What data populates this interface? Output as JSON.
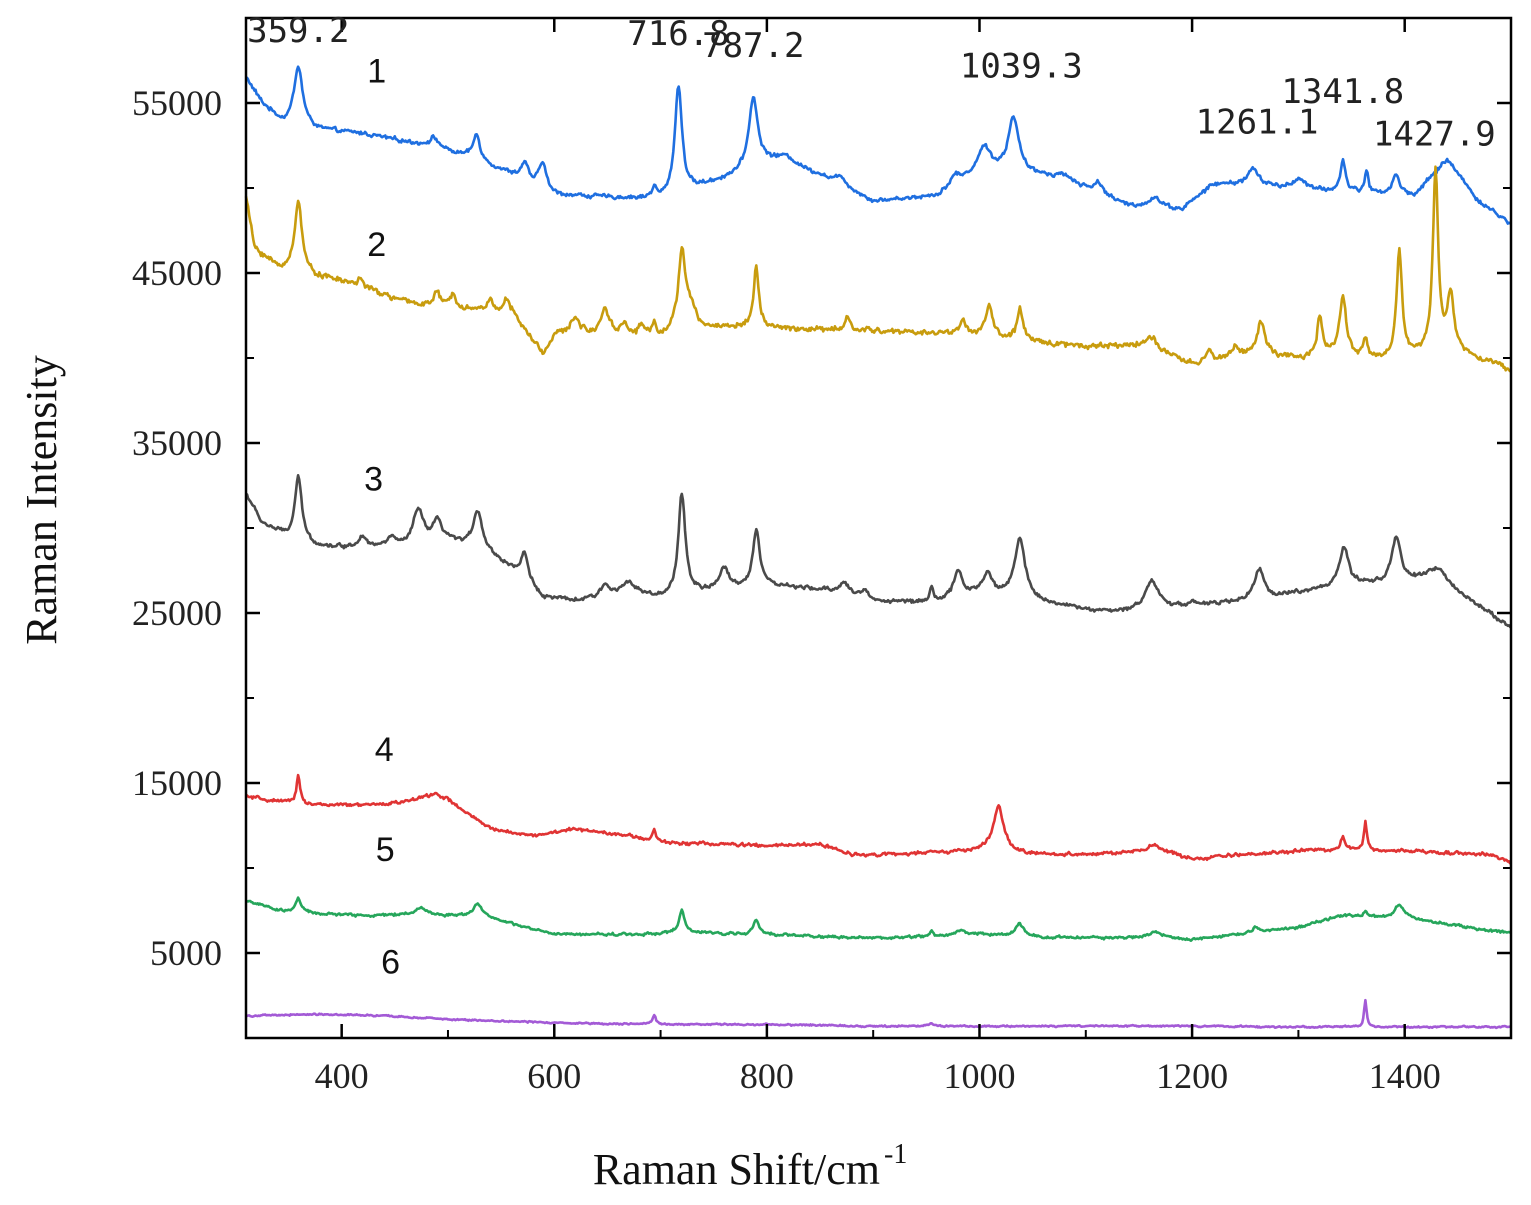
{
  "chart_data": {
    "type": "line",
    "xlabel": "Raman Shift/cm",
    "xlabel_superscript": "-1",
    "ylabel": "Raman Intensity",
    "xlim": [
      310,
      1500
    ],
    "ylim": [
      0,
      60000
    ],
    "x_ticks": [
      400,
      600,
      800,
      1000,
      1200,
      1400
    ],
    "y_ticks": [
      5000,
      15000,
      25000,
      35000,
      45000,
      55000
    ],
    "y_tick_labels": [
      "5000",
      "15000",
      "25000",
      "35000",
      "45000",
      "55000"
    ],
    "peak_labels": [
      {
        "text": "359.2",
        "x": 359.2,
        "y": 58600
      },
      {
        "text": "716.8",
        "x": 716.8,
        "y": 58400
      },
      {
        "text": "787.2",
        "x": 787.2,
        "y": 57700
      },
      {
        "text": "1039.3",
        "x": 1039.3,
        "y": 56500
      },
      {
        "text": "1261.1",
        "x": 1261.1,
        "y": 53200
      },
      {
        "text": "1341.8",
        "x": 1341.8,
        "y": 55000
      },
      {
        "text": "1427.9",
        "x": 1427.9,
        "y": 52500
      }
    ],
    "series": [
      {
        "name": "1",
        "color": "#1f6fe0",
        "label_pos": [
          433,
          56200
        ],
        "baseline": [
          [
            310,
            56500
          ],
          [
            325,
            55000
          ],
          [
            345,
            53800
          ],
          [
            380,
            53400
          ],
          [
            420,
            53200
          ],
          [
            470,
            52600
          ],
          [
            520,
            51800
          ],
          [
            560,
            50800
          ],
          [
            600,
            49600
          ],
          [
            700,
            49300
          ],
          [
            760,
            50500
          ],
          [
            800,
            51300
          ],
          [
            850,
            50700
          ],
          [
            900,
            49200
          ],
          [
            960,
            49500
          ],
          [
            1000,
            50800
          ],
          [
            1060,
            50600
          ],
          [
            1100,
            49800
          ],
          [
            1140,
            48900
          ],
          [
            1190,
            48700
          ],
          [
            1220,
            50200
          ],
          [
            1260,
            50200
          ],
          [
            1300,
            49900
          ],
          [
            1330,
            49800
          ],
          [
            1370,
            49700
          ],
          [
            1410,
            49600
          ],
          [
            1440,
            51700
          ],
          [
            1470,
            49200
          ],
          [
            1500,
            47900
          ]
        ],
        "peaks": [
          [
            359.2,
            3500,
            5
          ],
          [
            487,
            600,
            6
          ],
          [
            527,
            1500,
            4
          ],
          [
            572,
            1000,
            4
          ],
          [
            589,
            1600,
            4
          ],
          [
            694,
            600,
            3
          ],
          [
            716.8,
            6400,
            4
          ],
          [
            787.2,
            4200,
            5
          ],
          [
            818,
            700,
            14
          ],
          [
            870,
            500,
            6
          ],
          [
            977,
            600,
            6
          ],
          [
            1005,
            1500,
            8
          ],
          [
            1032,
            3400,
            6
          ],
          [
            1080,
            500,
            12
          ],
          [
            1112,
            700,
            6
          ],
          [
            1165,
            600,
            8
          ],
          [
            1257,
            900,
            6
          ],
          [
            1301,
            700,
            6
          ],
          [
            1342,
            1800,
            3
          ],
          [
            1364,
            1300,
            2
          ],
          [
            1392,
            1100,
            4
          ]
        ],
        "noise": 160
      },
      {
        "name": "2",
        "color": "#c89c0e",
        "label_pos": [
          433,
          46000
        ],
        "baseline": [
          [
            310,
            49500
          ],
          [
            318,
            46500
          ],
          [
            340,
            45300
          ],
          [
            400,
            44500
          ],
          [
            460,
            43300
          ],
          [
            560,
            42600
          ],
          [
            590,
            40200
          ],
          [
            600,
            41400
          ],
          [
            650,
            41300
          ],
          [
            700,
            41300
          ],
          [
            760,
            41800
          ],
          [
            820,
            41700
          ],
          [
            900,
            41600
          ],
          [
            980,
            41400
          ],
          [
            1040,
            41000
          ],
          [
            1100,
            40700
          ],
          [
            1150,
            40700
          ],
          [
            1200,
            39600
          ],
          [
            1260,
            40300
          ],
          [
            1300,
            39900
          ],
          [
            1330,
            40100
          ],
          [
            1380,
            39900
          ],
          [
            1420,
            40200
          ],
          [
            1460,
            40200
          ],
          [
            1500,
            39300
          ]
        ],
        "peaks": [
          [
            359.2,
            4300,
            4
          ],
          [
            418,
            500,
            4
          ],
          [
            490,
            800,
            3
          ],
          [
            505,
            800,
            3
          ],
          [
            540,
            600,
            4
          ],
          [
            555,
            700,
            4
          ],
          [
            620,
            1000,
            5
          ],
          [
            648,
            1600,
            5
          ],
          [
            666,
            700,
            3
          ],
          [
            682,
            600,
            3
          ],
          [
            694,
            700,
            2
          ],
          [
            720,
            4600,
            4
          ],
          [
            728,
            1200,
            6
          ],
          [
            790,
            3600,
            3
          ],
          [
            876,
            700,
            3
          ],
          [
            984,
            800,
            4
          ],
          [
            1009,
            1900,
            4
          ],
          [
            1038,
            1900,
            3
          ],
          [
            1162,
            700,
            8
          ],
          [
            1216,
            500,
            4
          ],
          [
            1240,
            600,
            4
          ],
          [
            1265,
            1900,
            4
          ],
          [
            1320,
            2300,
            3
          ],
          [
            1341.8,
            3500,
            4
          ],
          [
            1363,
            1200,
            2
          ],
          [
            1395,
            6300,
            3
          ],
          [
            1429,
            10800,
            3
          ],
          [
            1443,
            3300,
            4
          ]
        ],
        "noise": 220
      },
      {
        "name": "3",
        "color": "#4a4a4a",
        "label_pos": [
          430,
          32200
        ],
        "baseline": [
          [
            310,
            32000
          ],
          [
            325,
            30300
          ],
          [
            350,
            29400
          ],
          [
            380,
            28900
          ],
          [
            420,
            28800
          ],
          [
            460,
            28800
          ],
          [
            500,
            29200
          ],
          [
            530,
            28800
          ],
          [
            560,
            27600
          ],
          [
            590,
            25900
          ],
          [
            620,
            25700
          ],
          [
            680,
            26100
          ],
          [
            700,
            25800
          ],
          [
            740,
            26200
          ],
          [
            800,
            26600
          ],
          [
            860,
            26300
          ],
          [
            900,
            25700
          ],
          [
            960,
            25600
          ],
          [
            1000,
            26200
          ],
          [
            1060,
            25600
          ],
          [
            1100,
            25200
          ],
          [
            1130,
            25000
          ],
          [
            1200,
            25400
          ],
          [
            1250,
            25700
          ],
          [
            1300,
            26200
          ],
          [
            1340,
            26600
          ],
          [
            1380,
            26700
          ],
          [
            1420,
            26900
          ],
          [
            1460,
            25800
          ],
          [
            1500,
            24100
          ]
        ],
        "peaks": [
          [
            359.2,
            3700,
            4
          ],
          [
            420,
            700,
            5
          ],
          [
            447,
            600,
            5
          ],
          [
            472,
            2100,
            6
          ],
          [
            490,
            1200,
            5
          ],
          [
            528,
            2200,
            5
          ],
          [
            572,
            1600,
            4
          ],
          [
            648,
            700,
            5
          ],
          [
            668,
            800,
            7
          ],
          [
            720,
            6000,
            4
          ],
          [
            760,
            1300,
            5
          ],
          [
            790,
            3300,
            4
          ],
          [
            873,
            700,
            5
          ],
          [
            892,
            500,
            4
          ],
          [
            955,
            1000,
            2
          ],
          [
            980,
            1500,
            5
          ],
          [
            1008,
            1100,
            5
          ],
          [
            1038,
            3500,
            6
          ],
          [
            1162,
            1700,
            8
          ],
          [
            1200,
            300,
            3
          ],
          [
            1263,
            1800,
            5
          ],
          [
            1343,
            2200,
            5
          ],
          [
            1392,
            2700,
            5
          ],
          [
            1432,
            1000,
            10
          ]
        ],
        "noise": 150
      },
      {
        "name": "4",
        "color": "#e03434",
        "label_pos": [
          440,
          16300
        ],
        "baseline": [
          [
            310,
            14200
          ],
          [
            340,
            13900
          ],
          [
            380,
            13700
          ],
          [
            430,
            13700
          ],
          [
            480,
            14000
          ],
          [
            500,
            13900
          ],
          [
            540,
            12300
          ],
          [
            580,
            11900
          ],
          [
            620,
            12300
          ],
          [
            660,
            12000
          ],
          [
            700,
            11500
          ],
          [
            760,
            11400
          ],
          [
            800,
            11300
          ],
          [
            850,
            11400
          ],
          [
            880,
            10800
          ],
          [
            920,
            10800
          ],
          [
            1000,
            11000
          ],
          [
            1040,
            10800
          ],
          [
            1100,
            10800
          ],
          [
            1150,
            10900
          ],
          [
            1180,
            10800
          ],
          [
            1200,
            10500
          ],
          [
            1250,
            10800
          ],
          [
            1300,
            11000
          ],
          [
            1340,
            11100
          ],
          [
            1400,
            11000
          ],
          [
            1450,
            10900
          ],
          [
            1480,
            10800
          ],
          [
            1500,
            10300
          ]
        ],
        "peaks": [
          [
            359.2,
            1700,
            2
          ],
          [
            487,
            400,
            10
          ],
          [
            694,
            700,
            2
          ],
          [
            1018,
            2700,
            6
          ],
          [
            1165,
            500,
            8
          ],
          [
            1341.8,
            700,
            2
          ],
          [
            1363,
            1700,
            1.6
          ]
        ],
        "noise": 130
      },
      {
        "name": "5",
        "color": "#26a65b",
        "label_pos": [
          441,
          10400
        ],
        "baseline": [
          [
            310,
            8100
          ],
          [
            340,
            7500
          ],
          [
            380,
            7300
          ],
          [
            430,
            7200
          ],
          [
            470,
            7300
          ],
          [
            500,
            7200
          ],
          [
            530,
            7200
          ],
          [
            560,
            6700
          ],
          [
            600,
            6100
          ],
          [
            680,
            6100
          ],
          [
            720,
            6200
          ],
          [
            800,
            6100
          ],
          [
            880,
            5900
          ],
          [
            920,
            5900
          ],
          [
            1000,
            6100
          ],
          [
            1060,
            5900
          ],
          [
            1120,
            5900
          ],
          [
            1200,
            5800
          ],
          [
            1260,
            6200
          ],
          [
            1300,
            6500
          ],
          [
            1340,
            7200
          ],
          [
            1400,
            7000
          ],
          [
            1440,
            6700
          ],
          [
            1480,
            6300
          ],
          [
            1500,
            6200
          ]
        ],
        "peaks": [
          [
            359.2,
            800,
            3
          ],
          [
            475,
            400,
            5
          ],
          [
            528,
            700,
            5
          ],
          [
            720,
            1300,
            3
          ],
          [
            790,
            800,
            3
          ],
          [
            955,
            300,
            2
          ],
          [
            983,
            300,
            5
          ],
          [
            1038,
            700,
            5
          ],
          [
            1165,
            400,
            8
          ],
          [
            1260,
            300,
            5
          ],
          [
            1363,
            300,
            2
          ],
          [
            1395,
            800,
            6
          ]
        ],
        "noise": 100
      },
      {
        "name": "6",
        "color": "#a35ad6",
        "label_pos": [
          446,
          3800
        ],
        "baseline": [
          [
            310,
            1300
          ],
          [
            380,
            1400
          ],
          [
            440,
            1300
          ],
          [
            500,
            1100
          ],
          [
            600,
            900
          ],
          [
            700,
            800
          ],
          [
            800,
            800
          ],
          [
            900,
            700
          ],
          [
            1000,
            700
          ],
          [
            1100,
            700
          ],
          [
            1200,
            700
          ],
          [
            1300,
            650
          ],
          [
            1400,
            650
          ],
          [
            1500,
            650
          ]
        ],
        "peaks": [
          [
            694,
            500,
            2
          ],
          [
            955,
            200,
            2
          ],
          [
            1363,
            1600,
            1.4
          ]
        ],
        "noise": 60
      }
    ]
  }
}
